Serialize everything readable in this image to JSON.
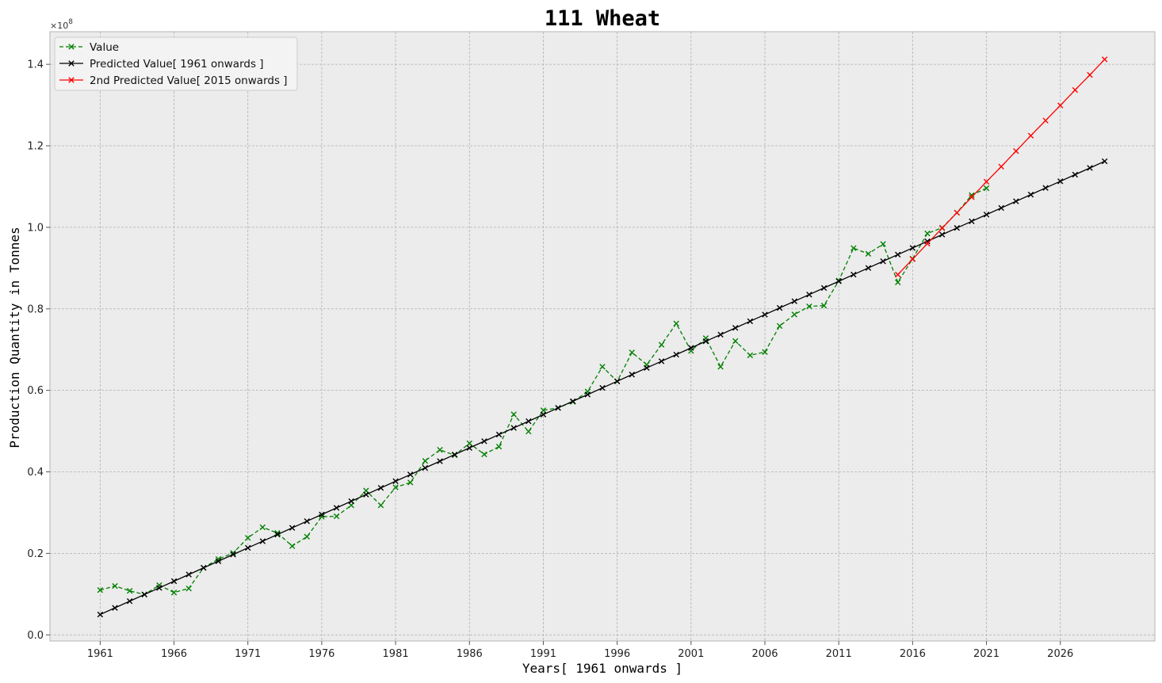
{
  "chart_data": {
    "type": "line",
    "title": "111 Wheat",
    "xlabel": "Years[ 1961 onwards ]",
    "ylabel": "Production Quantity in Tonnes",
    "y_offset_label": "×10",
    "y_offset_exponent": "8",
    "xlim": [
      1957.6,
      2032.4
    ],
    "ylim": [
      -0.015,
      1.48
    ],
    "x_ticks": [
      1961,
      1966,
      1971,
      1976,
      1981,
      1986,
      1991,
      1996,
      2001,
      2006,
      2011,
      2016,
      2021,
      2026
    ],
    "y_ticks": [
      0.0,
      0.2,
      0.4,
      0.6,
      0.8,
      1.0,
      1.2,
      1.4
    ],
    "y_tick_labels": [
      "0.0",
      "0.2",
      "0.4",
      "0.6",
      "0.8",
      "1.0",
      "1.2",
      "1.4"
    ],
    "grid": true,
    "legend_position": "top-left",
    "series": [
      {
        "name": "Value",
        "color": "#008000",
        "style": "dashed",
        "marker": "x",
        "x": [
          1961,
          1962,
          1963,
          1964,
          1965,
          1966,
          1967,
          1968,
          1969,
          1970,
          1971,
          1972,
          1973,
          1974,
          1975,
          1976,
          1977,
          1978,
          1979,
          1980,
          1981,
          1982,
          1983,
          1984,
          1985,
          1986,
          1987,
          1988,
          1989,
          1990,
          1991,
          1992,
          1993,
          1994,
          1995,
          1996,
          1997,
          1998,
          1999,
          2000,
          2001,
          2002,
          2003,
          2004,
          2005,
          2006,
          2007,
          2008,
          2009,
          2010,
          2011,
          2012,
          2013,
          2014,
          2015,
          2016,
          2017,
          2018,
          2019,
          2020,
          2021
        ],
        "values": [
          0.11,
          0.12,
          0.108,
          0.099,
          0.122,
          0.104,
          0.114,
          0.165,
          0.186,
          0.201,
          0.238,
          0.264,
          0.25,
          0.218,
          0.241,
          0.29,
          0.291,
          0.318,
          0.354,
          0.318,
          0.362,
          0.374,
          0.427,
          0.454,
          0.441,
          0.47,
          0.443,
          0.462,
          0.541,
          0.499,
          0.551,
          0.557,
          0.572,
          0.597,
          0.658,
          0.622,
          0.693,
          0.663,
          0.712,
          0.764,
          0.697,
          0.728,
          0.658,
          0.721,
          0.686,
          0.694,
          0.758,
          0.786,
          0.806,
          0.808,
          0.869,
          0.949,
          0.935,
          0.959,
          0.865,
          0.923,
          0.985,
          0.999,
          1.036,
          1.079,
          1.096
        ]
      },
      {
        "name": "Predicted Value[ 1961 onwards ]",
        "color": "#000000",
        "style": "solid",
        "marker": "x",
        "x_start": 1961,
        "x_end": 2029,
        "y_start": 0.05,
        "y_end": 1.162
      },
      {
        "name": "2nd Predicted Value[ 2015 onwards ]",
        "color": "#ff0000",
        "style": "solid",
        "marker": "x",
        "x": [
          2015,
          2016,
          2017,
          2018,
          2019,
          2020,
          2021,
          2022,
          2023,
          2024,
          2025,
          2026,
          2027,
          2028,
          2029
        ],
        "values": [
          0.884,
          0.922,
          0.96,
          0.998,
          1.036,
          1.074,
          1.112,
          1.149,
          1.187,
          1.225,
          1.262,
          1.299,
          1.337,
          1.374,
          1.412
        ]
      }
    ]
  }
}
